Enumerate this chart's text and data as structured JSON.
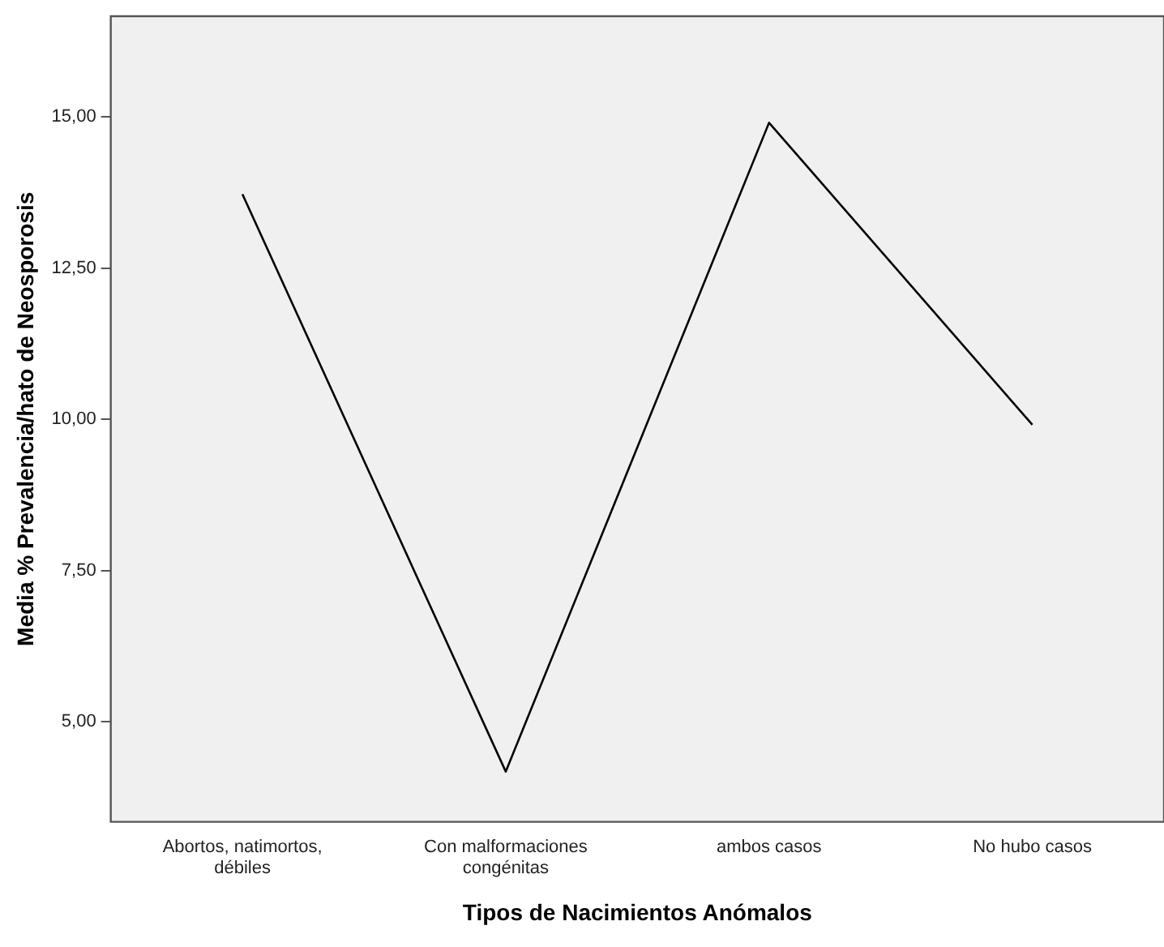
{
  "chart_data": {
    "type": "line",
    "xlabel": "Tipos de Nacimientos Anómalos",
    "ylabel": "Media % Prevalencia/hato de Neosporosis",
    "categories": [
      "Abortos, natimortos, débiles",
      "Con malformaciones congénitas",
      "ambos casos",
      "No hubo casos"
    ],
    "series": [
      {
        "color": "#000000",
        "values": [
          13.72,
          4.18,
          14.9,
          9.91
        ]
      }
    ],
    "ylim": [
      3.35,
      16.66
    ],
    "yticks": [
      {
        "value": 5,
        "label": "5,00"
      },
      {
        "value": 7.5,
        "label": "7,50"
      },
      {
        "value": 10,
        "label": "10,00"
      },
      {
        "value": 12.5,
        "label": "12,50"
      },
      {
        "value": 15,
        "label": "15,00"
      }
    ],
    "grid": false,
    "legend": false,
    "marker": "none",
    "line_style": "solid"
  }
}
